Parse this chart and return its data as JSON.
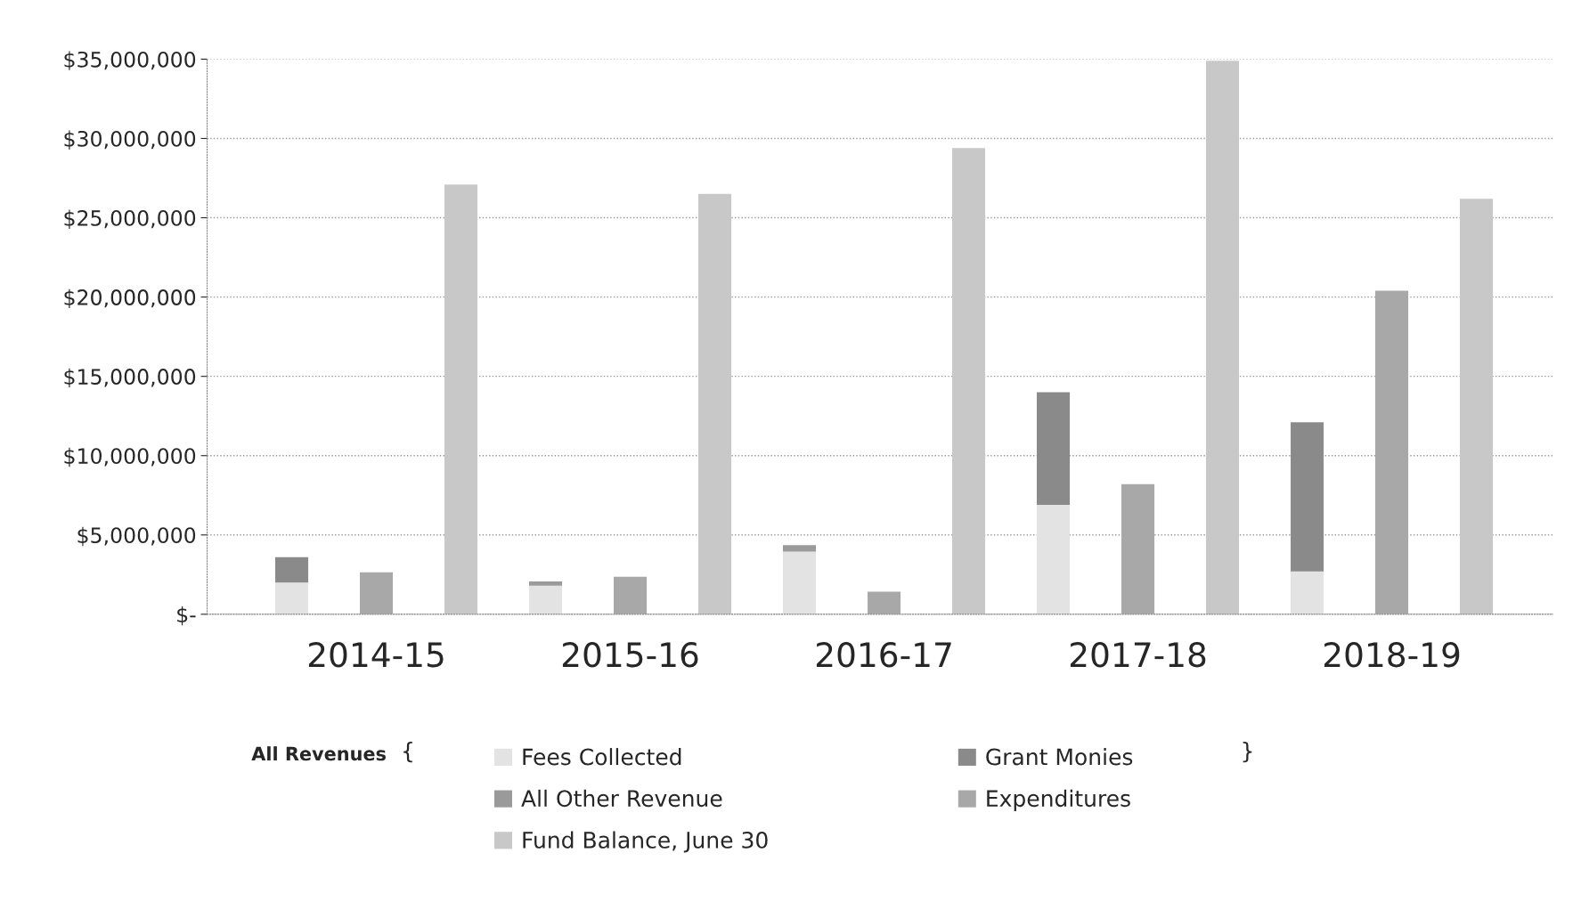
{
  "chart_data": {
    "type": "bar",
    "stacked": true,
    "legend_title": "All Revenues",
    "annotations": [
      "{",
      "}"
    ],
    "categories": [
      null,
      "2014-15",
      null,
      null,
      "2015-16",
      null,
      null,
      "2016-17",
      null,
      null,
      "2017-18",
      null,
      null,
      "2018-19",
      null
    ],
    "series": [
      {
        "name": "Fees Collected",
        "color": "#e3e3e3",
        "values": [
          2000000.0,
          null,
          null,
          1800000.0,
          null,
          null,
          3950000.0,
          null,
          null,
          6900000.0,
          null,
          null,
          2700000.0,
          null,
          null
        ]
      },
      {
        "name": "Grant Monies",
        "color": "#8a8a8a",
        "values": [
          1600000.0,
          null,
          null,
          0,
          null,
          null,
          0,
          null,
          null,
          7100000.0,
          null,
          null,
          9400000.0,
          null,
          null
        ]
      },
      {
        "name": "All Other Revenue",
        "color": "#9a9a9a",
        "values": [
          0,
          null,
          null,
          270000.0,
          null,
          null,
          410000.0,
          null,
          null,
          0,
          null,
          null,
          0,
          null,
          null
        ]
      },
      {
        "name": "Expenditures",
        "color": "#a8a8a8",
        "values": [
          null,
          2650000.0,
          null,
          null,
          2360000.0,
          null,
          null,
          1420000.0,
          null,
          null,
          8200000.0,
          null,
          null,
          20400000.0,
          null
        ]
      },
      {
        "name": "Fund Balance, June 30",
        "color": "#c8c8c8",
        "values": [
          null,
          null,
          27100000.0,
          null,
          null,
          26500000.0,
          null,
          null,
          29400000.0,
          null,
          null,
          34900000.0,
          null,
          null,
          26200000.0
        ]
      }
    ],
    "ylim": [
      0,
      35000000
    ],
    "yticks": [
      {
        "value": 0,
        "label": "$-"
      },
      {
        "value": 5000000,
        "label": "$5,000,000"
      },
      {
        "value": 10000000,
        "label": "$10,000,000"
      },
      {
        "value": 15000000,
        "label": "$15,000,000"
      },
      {
        "value": 20000000,
        "label": "$20,000,000"
      },
      {
        "value": 25000000,
        "label": "$25,000,000"
      },
      {
        "value": 30000000,
        "label": "$30,000,000"
      },
      {
        "value": 35000000,
        "label": "$35,000,000"
      }
    ],
    "grid": "y",
    "legend": "bottom"
  }
}
